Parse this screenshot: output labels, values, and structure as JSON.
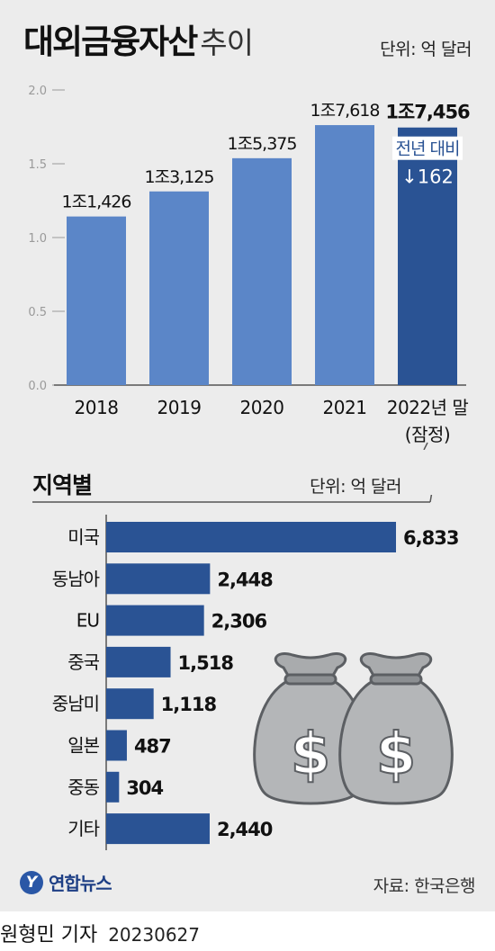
{
  "title": {
    "main": "대외금융자산",
    "sub": "추이"
  },
  "unit_top": "단위: 억 달러",
  "unit_mid": "단위: 억 달러",
  "region_title": "지역별",
  "change": {
    "label": "전년 대비",
    "value": "↓162"
  },
  "source": "자료: 한국은행",
  "logo": {
    "mark": "Y",
    "text": "연합뉴스"
  },
  "byline": {
    "name": "원형민 기자",
    "date": "20230627"
  },
  "colors": {
    "bar_light": "#5b86c8",
    "bar_dark": "#2a5394",
    "panel": "#ececec"
  },
  "chart_data": [
    {
      "type": "bar",
      "categories": [
        "2018",
        "2019",
        "2020",
        "2021",
        "2022년 말\n(잠정)"
      ],
      "values": [
        11426,
        13125,
        15375,
        17618,
        17456
      ],
      "value_labels": [
        "1조1,426",
        "1조3,125",
        "1조5,375",
        "1조7,618",
        "1조7,456"
      ],
      "y_ticks": [
        "0.0",
        "0.5",
        "1.0",
        "1.5",
        "2.0"
      ],
      "ylim": [
        0,
        20000
      ],
      "unit": "억 달러"
    },
    {
      "type": "bar",
      "orientation": "horizontal",
      "categories": [
        "미국",
        "동남아",
        "EU",
        "중국",
        "중남미",
        "일본",
        "중동",
        "기타"
      ],
      "values": [
        6833,
        2448,
        2306,
        1518,
        1118,
        487,
        304,
        2440
      ],
      "value_labels": [
        "6,833",
        "2,448",
        "2,306",
        "1,518",
        "1,118",
        "487",
        "304",
        "2,440"
      ],
      "xlim": [
        0,
        6833
      ],
      "unit": "억 달러"
    }
  ]
}
